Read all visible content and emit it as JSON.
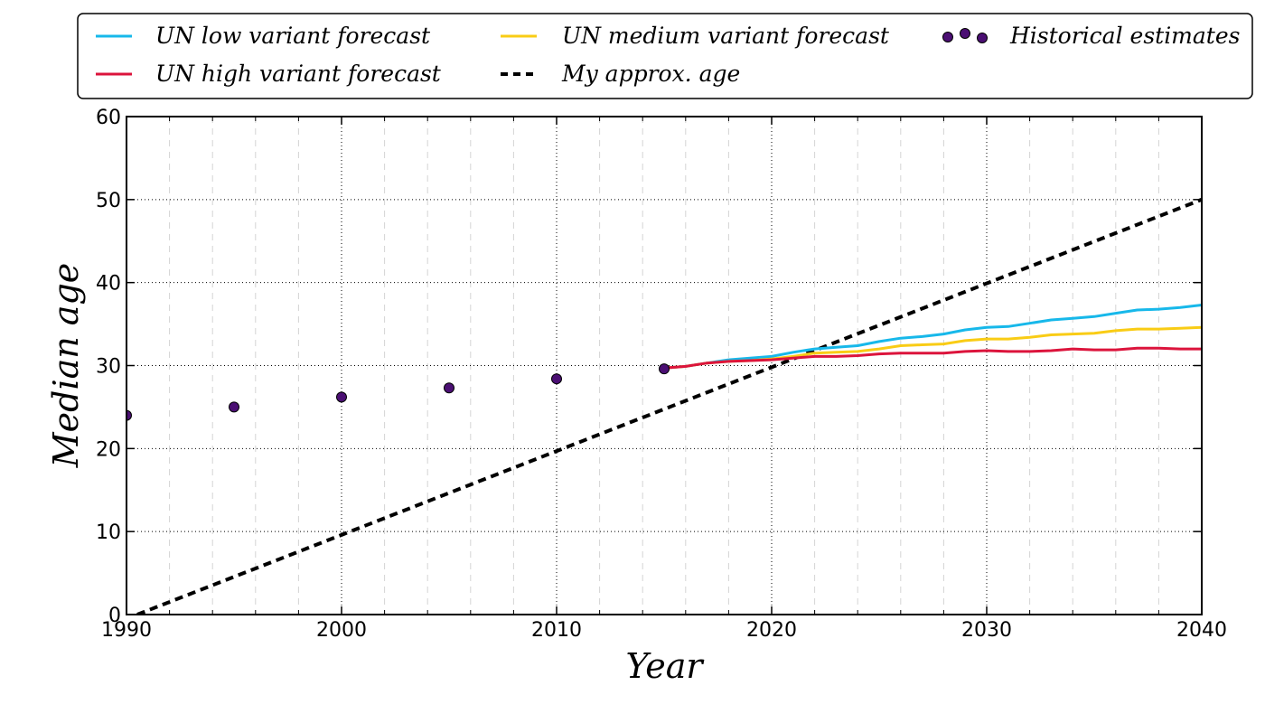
{
  "chart_data": {
    "type": "line",
    "xlabel": "Year",
    "ylabel": "Median age",
    "xlim": [
      1990,
      2040
    ],
    "ylim": [
      0,
      60
    ],
    "x_ticks": [
      1990,
      2000,
      2010,
      2020,
      2030,
      2040
    ],
    "y_ticks": [
      0,
      10,
      20,
      30,
      40,
      50,
      60
    ],
    "grid": true,
    "legend_position": "top",
    "colors": {
      "low": "#17b8ea",
      "medium": "#f9cc15",
      "high": "#dc143c",
      "historical": "#4b0f73",
      "my_age": "#000000"
    },
    "series": [
      {
        "key": "low",
        "name": "UN low variant forecast",
        "style": "line",
        "x": [
          2015,
          2016,
          2017,
          2018,
          2019,
          2020,
          2021,
          2022,
          2023,
          2024,
          2025,
          2026,
          2027,
          2028,
          2029,
          2030,
          2031,
          2032,
          2033,
          2034,
          2035,
          2036,
          2037,
          2038,
          2039,
          2040
        ],
        "y": [
          29.7,
          29.9,
          30.3,
          30.7,
          30.9,
          31.1,
          31.6,
          32.0,
          32.2,
          32.4,
          32.9,
          33.3,
          33.5,
          33.8,
          34.3,
          34.6,
          34.7,
          35.1,
          35.5,
          35.7,
          35.9,
          36.3,
          36.7,
          36.8,
          37.0,
          37.3
        ]
      },
      {
        "key": "medium",
        "name": "UN medium variant forecast",
        "style": "line",
        "x": [
          2015,
          2016,
          2017,
          2018,
          2019,
          2020,
          2021,
          2022,
          2023,
          2024,
          2025,
          2026,
          2027,
          2028,
          2029,
          2030,
          2031,
          2032,
          2033,
          2034,
          2035,
          2036,
          2037,
          2038,
          2039,
          2040
        ],
        "y": [
          29.7,
          29.9,
          30.3,
          30.5,
          30.6,
          30.8,
          31.1,
          31.5,
          31.6,
          31.7,
          32.0,
          32.4,
          32.5,
          32.6,
          33.0,
          33.2,
          33.2,
          33.4,
          33.7,
          33.8,
          33.9,
          34.2,
          34.4,
          34.4,
          34.5,
          34.6
        ]
      },
      {
        "key": "high",
        "name": "UN high variant forecast",
        "style": "line",
        "x": [
          2015,
          2016,
          2017,
          2018,
          2019,
          2020,
          2021,
          2022,
          2023,
          2024,
          2025,
          2026,
          2027,
          2028,
          2029,
          2030,
          2031,
          2032,
          2033,
          2034,
          2035,
          2036,
          2037,
          2038,
          2039,
          2040
        ],
        "y": [
          29.7,
          29.9,
          30.3,
          30.5,
          30.6,
          30.7,
          30.9,
          31.1,
          31.1,
          31.2,
          31.4,
          31.5,
          31.5,
          31.5,
          31.7,
          31.8,
          31.7,
          31.7,
          31.8,
          32.0,
          31.9,
          31.9,
          32.1,
          32.1,
          32.0,
          32.0
        ]
      },
      {
        "key": "my_age",
        "name": "My approx. age",
        "style": "dashed",
        "x": [
          1990.5,
          2040
        ],
        "y": [
          0,
          50
        ]
      },
      {
        "key": "historical",
        "name": "Historical estimates",
        "style": "scatter",
        "x": [
          1990,
          1995,
          2000,
          2005,
          2010,
          2015
        ],
        "y": [
          24,
          25,
          26.2,
          27.3,
          28.4,
          29.6
        ]
      }
    ]
  }
}
